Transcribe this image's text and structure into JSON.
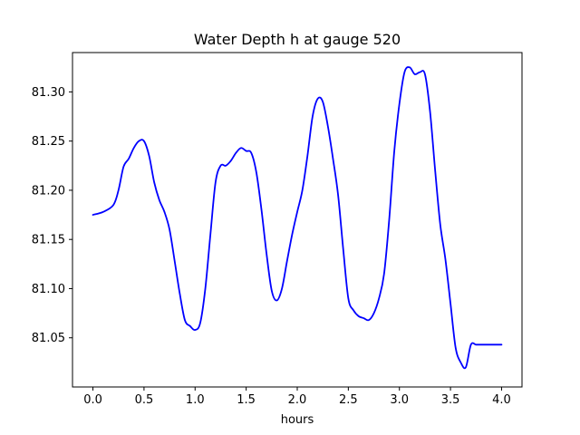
{
  "chart_data": {
    "type": "line",
    "title": "Water Depth h at gauge 520",
    "xlabel": "hours",
    "ylabel": "",
    "xlim": [
      -0.2,
      4.2
    ],
    "ylim": [
      81.0,
      81.34
    ],
    "xticks": [
      0.0,
      0.5,
      1.0,
      1.5,
      2.0,
      2.5,
      3.0,
      3.5,
      4.0
    ],
    "xtick_labels": [
      "0.0",
      "0.5",
      "1.0",
      "1.5",
      "2.0",
      "2.5",
      "3.0",
      "3.5",
      "4.0"
    ],
    "yticks": [
      81.05,
      81.1,
      81.15,
      81.2,
      81.25,
      81.3
    ],
    "ytick_labels": [
      "81.05",
      "81.10",
      "81.15",
      "81.20",
      "81.25",
      "81.30"
    ],
    "grid": false,
    "series": [
      {
        "color": "#0000ff",
        "x": [
          0.0,
          0.1,
          0.2,
          0.25,
          0.3,
          0.35,
          0.4,
          0.45,
          0.5,
          0.55,
          0.6,
          0.65,
          0.7,
          0.75,
          0.8,
          0.85,
          0.9,
          0.95,
          1.0,
          1.05,
          1.1,
          1.15,
          1.2,
          1.25,
          1.3,
          1.35,
          1.4,
          1.45,
          1.5,
          1.55,
          1.6,
          1.65,
          1.7,
          1.75,
          1.8,
          1.85,
          1.9,
          1.95,
          2.0,
          2.05,
          2.1,
          2.15,
          2.2,
          2.25,
          2.3,
          2.35,
          2.4,
          2.45,
          2.5,
          2.55,
          2.6,
          2.65,
          2.7,
          2.75,
          2.8,
          2.85,
          2.9,
          2.95,
          3.0,
          3.05,
          3.1,
          3.15,
          3.2,
          3.25,
          3.3,
          3.35,
          3.4,
          3.45,
          3.5,
          3.55,
          3.6,
          3.65,
          3.7,
          3.75,
          3.8,
          3.85,
          3.9,
          3.95,
          4.0
        ],
        "y": [
          81.175,
          81.178,
          81.185,
          81.2,
          81.224,
          81.232,
          81.243,
          81.25,
          81.25,
          81.235,
          81.208,
          81.19,
          81.178,
          81.16,
          81.128,
          81.095,
          81.068,
          81.062,
          81.058,
          81.065,
          81.1,
          81.155,
          81.208,
          81.225,
          81.225,
          81.23,
          81.238,
          81.243,
          81.24,
          81.238,
          81.218,
          81.18,
          81.135,
          81.098,
          81.088,
          81.1,
          81.128,
          81.155,
          81.178,
          81.2,
          81.235,
          81.275,
          81.293,
          81.29,
          81.265,
          81.232,
          81.195,
          81.14,
          81.09,
          81.078,
          81.072,
          81.07,
          81.068,
          81.075,
          81.09,
          81.115,
          81.17,
          81.24,
          81.288,
          81.32,
          81.325,
          81.318,
          81.32,
          81.318,
          81.28,
          81.22,
          81.165,
          81.13,
          81.085,
          81.04,
          81.025,
          81.02,
          81.043,
          81.043,
          81.043,
          81.043,
          81.043,
          81.043,
          81.043
        ],
        "x_end": 4.0
      }
    ]
  }
}
